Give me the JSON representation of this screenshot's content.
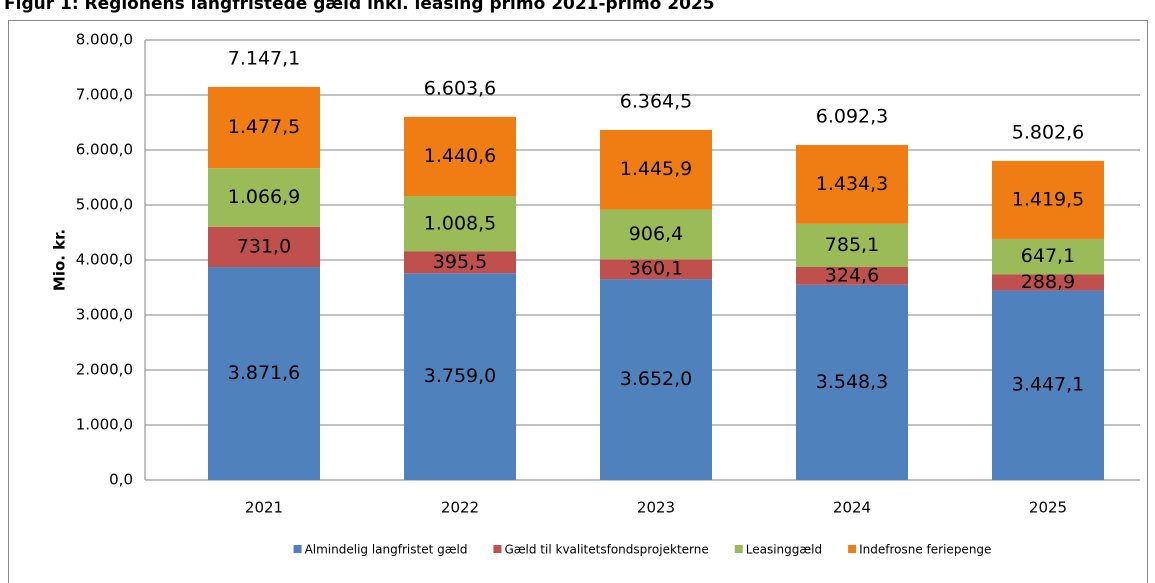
{
  "chart_data": {
    "type": "stacked_bar",
    "title": "Figur 1: Regionens langfristede gæld inkl. leasing primo 2021-primo 2025",
    "y_label": "Mio. kr.",
    "categories": [
      "2021",
      "2022",
      "2023",
      "2024",
      "2025"
    ],
    "series": [
      {
        "name": "Almindelig langfristet gæld",
        "color": "#4f81bd",
        "values": [
          3871.6,
          3759.0,
          3652.0,
          3548.3,
          3447.1
        ],
        "value_labels": [
          "3.871,6",
          "3.759,0",
          "3.652,0",
          "3.548,3",
          "3.447,1"
        ]
      },
      {
        "name": "Gæld til kvalitetsfondsprojekterne",
        "color": "#c0504d",
        "values": [
          731.0,
          395.5,
          360.1,
          324.6,
          288.9
        ],
        "value_labels": [
          "731,0",
          "395,5",
          "360,1",
          "324,6",
          "288,9"
        ]
      },
      {
        "name": "Leasinggæld",
        "color": "#9bbb59",
        "values": [
          1066.9,
          1008.5,
          906.4,
          785.1,
          647.1
        ],
        "value_labels": [
          "1.066,9",
          "1.008,5",
          "906,4",
          "785,1",
          "647,1"
        ]
      },
      {
        "name": "Indefrosne feriepenge",
        "color": "#f07c14",
        "values": [
          1477.5,
          1440.6,
          1445.9,
          1434.3,
          1419.5
        ],
        "value_labels": [
          "1.477,5",
          "1.440,6",
          "1.445,9",
          "1.434,3",
          "1.419,5"
        ]
      }
    ],
    "totals": [
      7147.1,
      6603.6,
      6364.5,
      6092.3,
      5802.6
    ],
    "total_labels": [
      "7.147,1",
      "6.603,6",
      "6.364,5",
      "6.092,3",
      "5.802,6"
    ],
    "ylim": [
      0,
      8000
    ],
    "yticks": [
      {
        "value": 0,
        "label": "0,0"
      },
      {
        "value": 1000,
        "label": "1.000,0"
      },
      {
        "value": 2000,
        "label": "2.000,0"
      },
      {
        "value": 3000,
        "label": "3.000,0"
      },
      {
        "value": 4000,
        "label": "4.000,0"
      },
      {
        "value": 5000,
        "label": "5.000,0"
      },
      {
        "value": 6000,
        "label": "6.000,0"
      },
      {
        "value": 7000,
        "label": "7.000,0"
      },
      {
        "value": 8000,
        "label": "8.000,0"
      }
    ],
    "grid": true,
    "legend": "bottom"
  }
}
